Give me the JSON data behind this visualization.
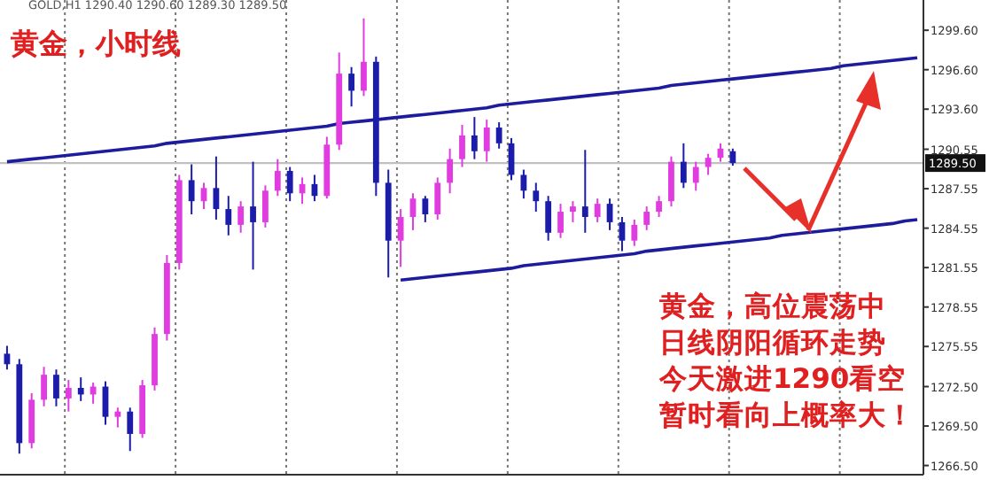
{
  "chart_data": {
    "type": "candlestick",
    "title": "黄金，小时线",
    "annotations": [
      "GOLD,H1  1290.40 1290.60 1289.30 1289.50",
      "黄金，高位震荡中",
      "日线阴阳循环走势",
      "今天激进1290看空",
      "暂时看向上概率大！"
    ],
    "categories": [
      null,
      null,
      null,
      null,
      null,
      null,
      null,
      null,
      null,
      null,
      null,
      null,
      null,
      null,
      null,
      null,
      null,
      null,
      null,
      null,
      null,
      null,
      null,
      null,
      null,
      null,
      null,
      null,
      null,
      null,
      null,
      null,
      null,
      null,
      null,
      null,
      null,
      null,
      null,
      null,
      null,
      null,
      null,
      null,
      null,
      null,
      null,
      null,
      null,
      null,
      null,
      null,
      null,
      null,
      null,
      null,
      null,
      null,
      null,
      null,
      null,
      null,
      null,
      null,
      null,
      null,
      null,
      null,
      null,
      null,
      null,
      null,
      null,
      null,
      null
    ],
    "ohlc": [
      [
        1275.0,
        1275.6,
        1273.8,
        1274.2
      ],
      [
        1274.2,
        1274.6,
        1267.4,
        1268.2
      ],
      [
        1268.2,
        1272.0,
        1267.8,
        1271.5
      ],
      [
        1271.5,
        1274.0,
        1271.0,
        1273.4
      ],
      [
        1273.4,
        1273.8,
        1271.0,
        1271.6
      ],
      [
        1271.6,
        1273.0,
        1270.6,
        1272.4
      ],
      [
        1272.4,
        1273.2,
        1271.4,
        1271.9
      ],
      [
        1271.9,
        1272.8,
        1271.2,
        1272.5
      ],
      [
        1272.5,
        1272.9,
        1269.6,
        1270.2
      ],
      [
        1270.2,
        1270.9,
        1269.4,
        1270.6
      ],
      [
        1270.6,
        1270.9,
        1267.6,
        1268.9
      ],
      [
        1268.9,
        1273.0,
        1268.6,
        1272.6
      ],
      [
        1272.6,
        1277.0,
        1272.2,
        1276.5
      ],
      [
        1276.5,
        1282.5,
        1276.0,
        1281.9
      ],
      [
        1281.9,
        1288.6,
        1281.4,
        1288.2
      ],
      [
        1288.2,
        1289.4,
        1285.6,
        1286.6
      ],
      [
        1286.6,
        1288.0,
        1286.0,
        1287.6
      ],
      [
        1287.6,
        1290.0,
        1285.2,
        1286.0
      ],
      [
        1286.0,
        1287.0,
        1284.0,
        1284.8
      ],
      [
        1284.8,
        1286.6,
        1284.2,
        1286.2
      ],
      [
        1286.2,
        1289.6,
        1281.4,
        1285.0
      ],
      [
        1285.0,
        1287.8,
        1284.6,
        1287.4
      ],
      [
        1287.4,
        1289.8,
        1287.0,
        1288.9
      ],
      [
        1288.9,
        1289.2,
        1286.6,
        1287.2
      ],
      [
        1287.2,
        1288.4,
        1286.4,
        1287.9
      ],
      [
        1287.9,
        1288.6,
        1286.6,
        1287.0
      ],
      [
        1287.0,
        1291.5,
        1286.8,
        1290.9
      ],
      [
        1290.9,
        1297.9,
        1290.5,
        1296.3
      ],
      [
        1296.3,
        1296.8,
        1293.8,
        1295.0
      ],
      [
        1295.0,
        1300.5,
        1294.6,
        1297.2
      ],
      [
        1297.2,
        1297.6,
        1287.0,
        1288.0
      ],
      [
        1288.0,
        1289.0,
        1280.8,
        1283.6
      ],
      [
        1283.6,
        1286.0,
        1281.6,
        1285.4
      ],
      [
        1285.4,
        1287.2,
        1284.4,
        1286.8
      ],
      [
        1286.8,
        1287.0,
        1285.0,
        1285.6
      ],
      [
        1285.6,
        1288.4,
        1285.2,
        1288.0
      ],
      [
        1288.0,
        1290.6,
        1287.2,
        1289.8
      ],
      [
        1289.8,
        1292.4,
        1289.2,
        1291.6
      ],
      [
        1291.6,
        1293.0,
        1289.8,
        1290.4
      ],
      [
        1290.4,
        1292.8,
        1289.6,
        1292.2
      ],
      [
        1292.2,
        1292.6,
        1290.6,
        1291.0
      ],
      [
        1291.0,
        1291.4,
        1288.2,
        1288.6
      ],
      [
        1288.6,
        1289.0,
        1286.8,
        1287.4
      ],
      [
        1287.4,
        1288.0,
        1285.8,
        1286.6
      ],
      [
        1286.6,
        1287.0,
        1283.6,
        1284.2
      ],
      [
        1284.2,
        1286.4,
        1283.8,
        1285.8
      ],
      [
        1285.8,
        1286.6,
        1285.0,
        1286.2
      ],
      [
        1286.2,
        1290.5,
        1284.2,
        1285.4
      ],
      [
        1285.4,
        1286.8,
        1285.0,
        1286.4
      ],
      [
        1286.4,
        1286.8,
        1284.4,
        1285.0
      ],
      [
        1285.0,
        1285.4,
        1282.8,
        1283.6
      ],
      [
        1283.6,
        1285.2,
        1283.2,
        1284.8
      ],
      [
        1284.8,
        1286.2,
        1284.4,
        1285.8
      ],
      [
        1285.8,
        1287.0,
        1285.4,
        1286.6
      ],
      [
        1286.6,
        1290.0,
        1286.2,
        1289.6
      ],
      [
        1289.6,
        1291.0,
        1287.6,
        1288.0
      ],
      [
        1288.0,
        1289.6,
        1287.4,
        1289.2
      ],
      [
        1289.2,
        1290.2,
        1288.6,
        1289.9
      ],
      [
        1289.9,
        1291.0,
        1289.6,
        1290.6
      ],
      [
        1290.4,
        1290.6,
        1289.3,
        1289.5
      ],
      null,
      null,
      null,
      null,
      null,
      null,
      null,
      null,
      null,
      null,
      null,
      null,
      null,
      null,
      null
    ],
    "colors": [
      "#1c1caa",
      "#1c1caa",
      "#e03ce0",
      "#e03ce0",
      "#1c1caa",
      "#e03ce0",
      "#1c1caa",
      "#e03ce0",
      "#1c1caa",
      "#e03ce0",
      "#1c1caa",
      "#e03ce0",
      "#e03ce0",
      "#e03ce0",
      "#e03ce0",
      "#1c1caa",
      "#e03ce0",
      "#1c1caa",
      "#1c1caa",
      "#e03ce0",
      "#1c1caa",
      "#e03ce0",
      "#e03ce0",
      "#1c1caa",
      "#e03ce0",
      "#1c1caa",
      "#e03ce0",
      "#e03ce0",
      "#1c1caa",
      "#e03ce0",
      "#1c1caa",
      "#1c1caa",
      "#e03ce0",
      "#e03ce0",
      "#1c1caa",
      "#e03ce0",
      "#e03ce0",
      "#e03ce0",
      "#1c1caa",
      "#e03ce0",
      "#1c1caa",
      "#1c1caa",
      "#1c1caa",
      "#1c1caa",
      "#1c1caa",
      "#e03ce0",
      "#e03ce0",
      "#1c1caa",
      "#e03ce0",
      "#1c1caa",
      "#1c1caa",
      "#e03ce0",
      "#e03ce0",
      "#e03ce0",
      "#e03ce0",
      "#1c1caa",
      "#e03ce0",
      "#e03ce0",
      "#e03ce0",
      "#1c1caa",
      null,
      null,
      null,
      null,
      null,
      null,
      null,
      null,
      null,
      null,
      null,
      null,
      null,
      null,
      null
    ],
    "series": [
      {
        "type": "line",
        "color": "#1c1c9c",
        "values": [
          1289.6,
          1289.7,
          1289.8,
          1289.9,
          1290.0,
          1290.1,
          1290.2,
          1290.3,
          1290.4,
          1290.5,
          1290.6,
          1290.7,
          1290.8,
          1291.0,
          1291.1,
          1291.2,
          1291.3,
          1291.4,
          1291.5,
          1291.6,
          1291.7,
          1291.8,
          1291.9,
          1292.0,
          1292.1,
          1292.2,
          1292.3,
          1292.5,
          1292.6,
          1292.7,
          1292.8,
          1292.9,
          1293.0,
          1293.1,
          1293.2,
          1293.3,
          1293.4,
          1293.5,
          1293.6,
          1293.7,
          1293.9,
          1294.0,
          1294.1,
          1294.2,
          1294.3,
          1294.4,
          1294.5,
          1294.6,
          1294.7,
          1294.8,
          1294.9,
          1295.0,
          1295.1,
          1295.2,
          1295.4,
          1295.5,
          1295.6,
          1295.7,
          1295.8,
          1295.9,
          1296.0,
          1296.1,
          1296.2,
          1296.3,
          1296.4,
          1296.5,
          1296.6,
          1296.7,
          1296.9,
          1297.0,
          1297.1,
          1297.2,
          1297.3,
          1297.4,
          1297.5
        ]
      },
      {
        "type": "line",
        "color": "#1c1c9c",
        "values": [
          null,
          null,
          null,
          null,
          null,
          null,
          null,
          null,
          null,
          null,
          null,
          null,
          null,
          null,
          null,
          null,
          null,
          null,
          null,
          null,
          null,
          null,
          null,
          null,
          null,
          null,
          null,
          null,
          null,
          null,
          null,
          null,
          1280.6,
          1280.7,
          1280.8,
          1280.9,
          1281.0,
          1281.1,
          1281.2,
          1281.3,
          1281.4,
          1281.5,
          1281.7,
          1281.8,
          1281.9,
          1282.0,
          1282.1,
          1282.2,
          1282.3,
          1282.4,
          1282.5,
          1282.6,
          1282.8,
          1282.9,
          1283.0,
          1283.1,
          1283.2,
          1283.3,
          1283.4,
          1283.5,
          1283.6,
          1283.7,
          1283.8,
          1284.0,
          1284.1,
          1284.2,
          1284.3,
          1284.4,
          1284.5,
          1284.6,
          1284.7,
          1284.8,
          1284.9,
          1285.1,
          1285.2
        ]
      }
    ],
    "ylim": [
      1265.8,
      1301.9
    ],
    "yticks": [
      {
        "value": 1266.5,
        "label": "1266.50"
      },
      {
        "value": 1269.5,
        "label": "1269.50"
      },
      {
        "value": 1272.5,
        "label": "1272.50"
      },
      {
        "value": 1275.55,
        "label": "1275.55"
      },
      {
        "value": 1278.55,
        "label": "1278.55"
      },
      {
        "value": 1281.55,
        "label": "1281.55"
      },
      {
        "value": 1284.55,
        "label": "1284.55"
      },
      {
        "value": 1287.55,
        "label": "1287.55"
      },
      {
        "value": 1290.55,
        "label": "1290.55"
      },
      {
        "value": 1293.6,
        "label": "1293.60"
      },
      {
        "value": 1296.6,
        "label": "1296.60"
      },
      {
        "value": 1299.6,
        "label": "1299.60"
      }
    ],
    "ref_lines": [
      {
        "axis": "y",
        "value": 1289.5,
        "label": "1289.50",
        "color": "#c0c0c0"
      }
    ],
    "grid": "x",
    "tick_labels": "y"
  }
}
